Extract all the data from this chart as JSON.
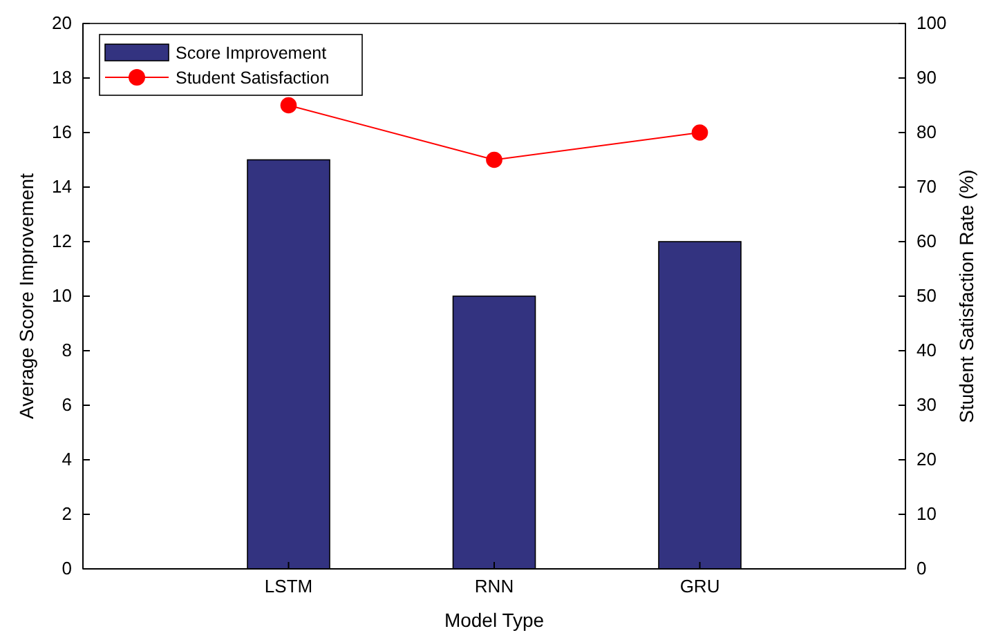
{
  "chart_data": {
    "type": "bar",
    "xlabel": "Model Type",
    "ylabel": "Average Score Improvement",
    "y2label": "Student Satisfaction Rate (%)",
    "categories": [
      "LSTM",
      "RNN",
      "GRU"
    ],
    "series": [
      {
        "name": "Score Improvement",
        "color": "#333380",
        "values": [
          15,
          10,
          12
        ]
      },
      {
        "name": "Student Satisfaction",
        "type": "line",
        "axis": "y2",
        "color": "#ff0000",
        "marker": "circle",
        "line_style": "solid",
        "values": [
          85,
          75,
          80
        ]
      }
    ],
    "ylim": [
      0,
      20
    ],
    "yticks": [
      0,
      2,
      4,
      6,
      8,
      10,
      12,
      14,
      16,
      18,
      20
    ],
    "y2lim": [
      0,
      100
    ],
    "y2ticks": [
      0,
      10,
      20,
      30,
      40,
      50,
      60,
      70,
      80,
      90,
      100
    ],
    "legend": "top left",
    "grid": false
  }
}
